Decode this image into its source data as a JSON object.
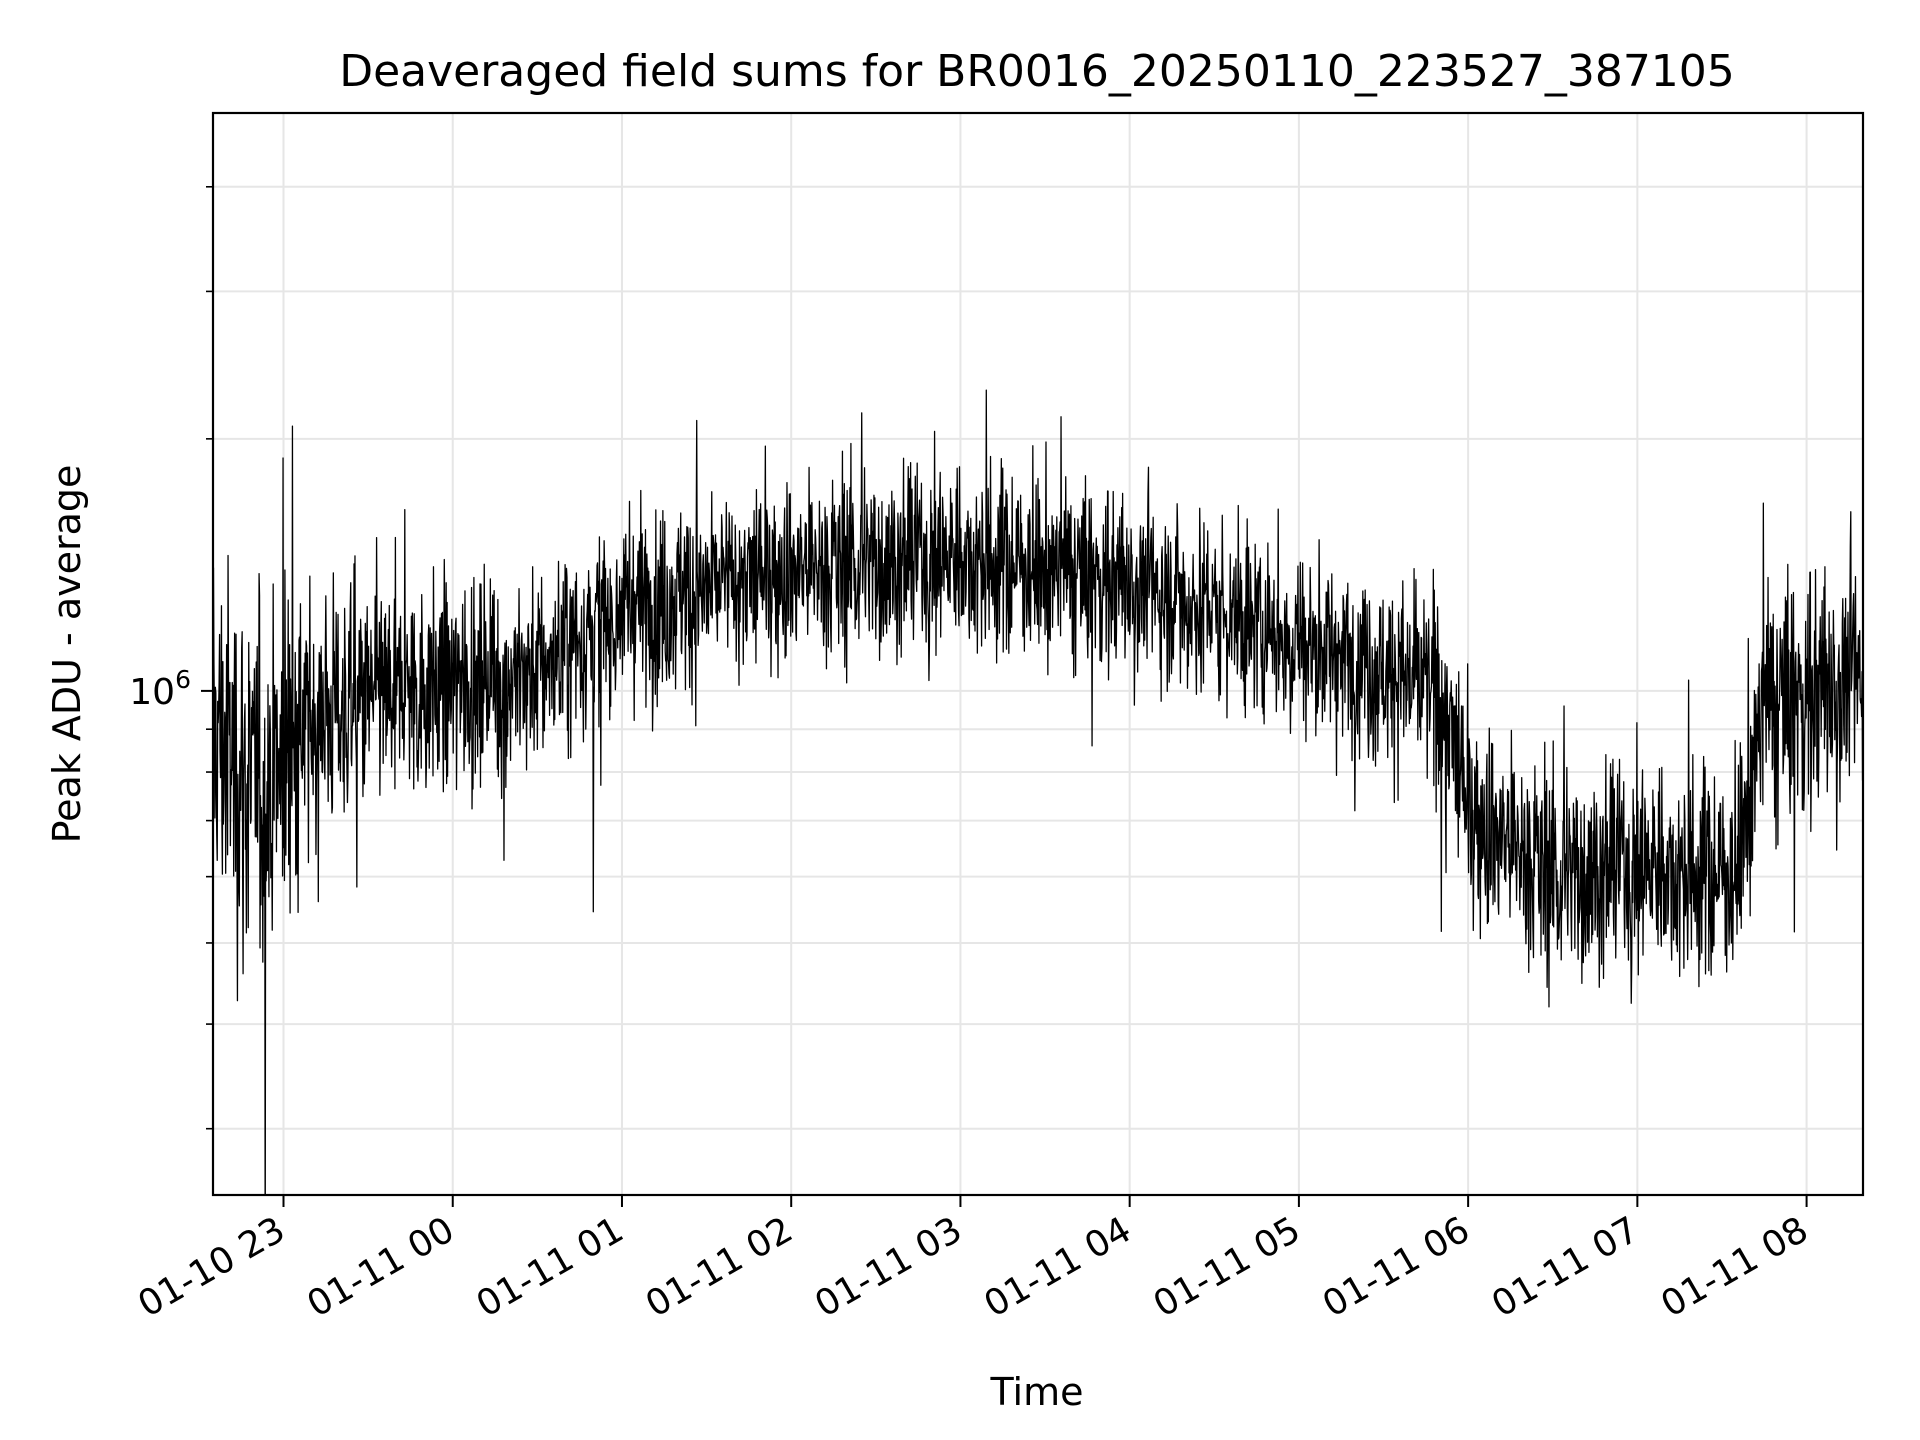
{
  "chart_data": {
    "type": "line",
    "title": "Deaveraged field sums for BR0016_20250110_223527_387105",
    "xlabel": "Time",
    "ylabel": "Peak ADU - average",
    "yscale": "log",
    "grid": true,
    "line_color": "#000000",
    "grid_color": "#e6e6e6",
    "x_ticks": [
      {
        "value": "2025-01-10 23:00",
        "label": "01-10 23"
      },
      {
        "value": "2025-01-11 00:00",
        "label": "01-11 00"
      },
      {
        "value": "2025-01-11 01:00",
        "label": "01-11 01"
      },
      {
        "value": "2025-01-11 02:00",
        "label": "01-11 02"
      },
      {
        "value": "2025-01-11 03:00",
        "label": "01-11 03"
      },
      {
        "value": "2025-01-11 04:00",
        "label": "01-11 04"
      },
      {
        "value": "2025-01-11 05:00",
        "label": "01-11 05"
      },
      {
        "value": "2025-01-11 06:00",
        "label": "01-11 06"
      },
      {
        "value": "2025-01-11 07:00",
        "label": "01-11 07"
      },
      {
        "value": "2025-01-11 08:00",
        "label": "01-11 08"
      }
    ],
    "xlim": [
      "2025-01-10 22:35",
      "2025-01-11 08:20"
    ],
    "y_major_ticks": [
      {
        "value": 1000000,
        "label_base": "10",
        "label_exp": "6"
      }
    ],
    "y_minor_ticks": [
      300000,
      400000,
      500000,
      600000,
      700000,
      800000,
      900000,
      2000000,
      3000000,
      4000000
    ],
    "ylim": [
      250000,
      4900000
    ],
    "envelope": {
      "x": [
        "2025-01-10 22:35",
        "2025-01-10 22:50",
        "2025-01-10 23:15",
        "2025-01-10 23:45",
        "2025-01-11 00:30",
        "2025-01-11 01:00",
        "2025-01-11 02:00",
        "2025-01-11 03:00",
        "2025-01-11 04:00",
        "2025-01-11 05:00",
        "2025-01-11 05:50",
        "2025-01-11 06:00",
        "2025-01-11 06:30",
        "2025-01-11 07:00",
        "2025-01-11 07:35",
        "2025-01-11 07:45",
        "2025-01-11 08:20"
      ],
      "median": [
        900000,
        750000,
        950000,
        1000000,
        1050000,
        1250000,
        1400000,
        1450000,
        1350000,
        1150000,
        1000000,
        720000,
        600000,
        620000,
        600000,
        950000,
        1050000
      ],
      "spread": [
        0.3,
        0.32,
        0.2,
        0.18,
        0.17,
        0.16,
        0.16,
        0.16,
        0.16,
        0.16,
        0.16,
        0.18,
        0.18,
        0.18,
        0.18,
        0.22,
        0.22
      ]
    },
    "sample_interval_seconds": 10
  }
}
